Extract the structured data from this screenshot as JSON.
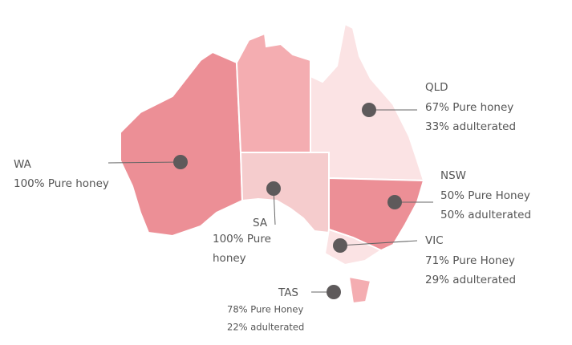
{
  "regions": [
    {
      "name": "WA",
      "lines": [
        "100% Pure honey"
      ]
    },
    {
      "name": "QLD",
      "lines": [
        "67% Pure honey",
        "33% adulterated"
      ]
    },
    {
      "name": "NSW",
      "lines": [
        "50% Pure Honey",
        "50% adulterated"
      ]
    },
    {
      "name": "SA",
      "lines": [
        "100% Pure",
        "honey"
      ]
    },
    {
      "name": "VIC",
      "lines": [
        "71% Pure Honey",
        "29% adulterated"
      ]
    },
    {
      "name": "TAS",
      "lines": [
        "78% Pure Honey",
        "22% adulterated"
      ]
    }
  ]
}
